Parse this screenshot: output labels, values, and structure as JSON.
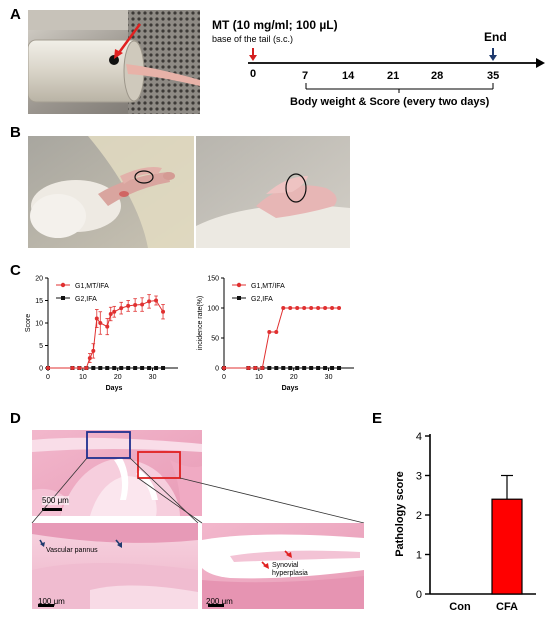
{
  "panels": {
    "a": "A",
    "b": "B",
    "c": "C",
    "d": "D",
    "e": "E"
  },
  "timeline": {
    "title": "MT (10 mg/ml; 100 µL)",
    "subtitle": "base of the tail (s.c.)",
    "end_label": "End",
    "ticks": [
      "0",
      "7",
      "14",
      "21",
      "28",
      "35"
    ],
    "bracket_label": "Body weight & Score (every two days)",
    "arrow_colors": {
      "start": "#d42020",
      "end": "#1f3a6e"
    }
  },
  "histology": {
    "scale_main": "500 μm",
    "scale_left": "100 μm",
    "scale_right": "200 μm",
    "label_pannus": "Vascular pannus",
    "label_synovial_1": "Synovial",
    "label_synovial_2": "hyperplasia",
    "box_colors": {
      "blue": "#1f2f8f",
      "red": "#e02020"
    }
  },
  "chart_data": [
    {
      "type": "line",
      "xlabel": "Days",
      "ylabel": "Score",
      "xlim": [
        0,
        35
      ],
      "ylim": [
        0,
        20
      ],
      "xticks": [
        "0",
        "10",
        "20",
        "30"
      ],
      "yticks": [
        "0",
        "5",
        "10",
        "15",
        "20"
      ],
      "legend_position": "top-left",
      "series": [
        {
          "name": "G1,MT/IFA",
          "color": "#e03030",
          "marker": "circle",
          "x": [
            0,
            7,
            9,
            11,
            12,
            13,
            14,
            15,
            17,
            18,
            19,
            21,
            23,
            25,
            27,
            29,
            31,
            33
          ],
          "y": [
            0,
            0,
            0,
            0,
            2.2,
            3.8,
            11,
            10,
            9.2,
            12,
            12.5,
            13.3,
            13.8,
            14,
            14.1,
            14.8,
            15,
            12.5
          ]
        },
        {
          "name": "G2,IFA",
          "color": "#111111",
          "marker": "square",
          "x": [
            0,
            7,
            9,
            11,
            13,
            15,
            17,
            19,
            21,
            23,
            25,
            27,
            29,
            31,
            33
          ],
          "y": [
            0,
            0,
            0,
            0,
            0,
            0,
            0,
            0,
            0,
            0,
            0,
            0,
            0,
            0,
            0
          ]
        }
      ]
    },
    {
      "type": "line",
      "xlabel": "Days",
      "ylabel": "incidence rate(%)",
      "xlim": [
        0,
        35
      ],
      "ylim": [
        0,
        150
      ],
      "xticks": [
        "0",
        "10",
        "20",
        "30"
      ],
      "yticks": [
        "0",
        "50",
        "100",
        "150"
      ],
      "legend_position": "top-left",
      "series": [
        {
          "name": "G1,MT/IFA",
          "color": "#e03030",
          "marker": "circle",
          "x": [
            0,
            7,
            9,
            11,
            13,
            15,
            17,
            19,
            21,
            23,
            25,
            27,
            29,
            31,
            33
          ],
          "y": [
            0,
            0,
            0,
            0,
            60,
            60,
            100,
            100,
            100,
            100,
            100,
            100,
            100,
            100,
            100
          ]
        },
        {
          "name": "G2,IFA",
          "color": "#111111",
          "marker": "square",
          "x": [
            0,
            7,
            9,
            11,
            13,
            15,
            17,
            19,
            21,
            23,
            25,
            27,
            29,
            31,
            33
          ],
          "y": [
            0,
            0,
            0,
            0,
            0,
            0,
            0,
            0,
            0,
            0,
            0,
            0,
            0,
            0,
            0
          ]
        }
      ]
    },
    {
      "type": "bar",
      "ylabel": "Pathology score",
      "categories": [
        "Con",
        "CFA"
      ],
      "values": [
        0,
        2.4
      ],
      "errors": [
        0,
        0.6
      ],
      "ylim": [
        0,
        4
      ],
      "yticks": [
        "0",
        "1",
        "2",
        "3",
        "4"
      ],
      "bar_color": "#ff0000"
    }
  ]
}
